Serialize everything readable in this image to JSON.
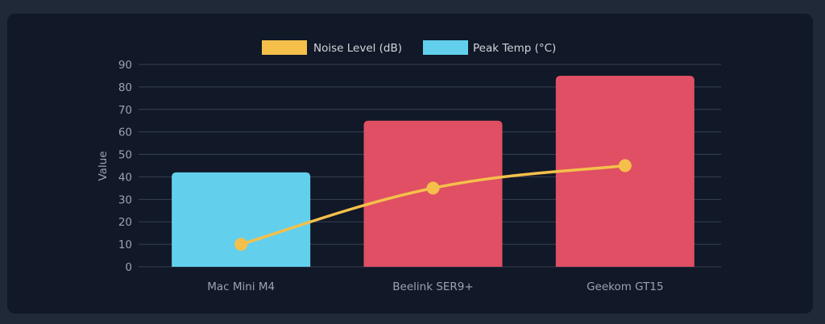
{
  "chart_data": {
    "type": "bar",
    "title": "",
    "xlabel": "",
    "ylabel": "Value",
    "ylim": [
      0,
      90
    ],
    "yticks": [
      0,
      10,
      20,
      30,
      40,
      50,
      60,
      70,
      80,
      90
    ],
    "grid": true,
    "legend_position": "top",
    "categories": [
      "Mac Mini M4",
      "Beelink SER9+",
      "Geekom GT15"
    ],
    "series": [
      {
        "name": "Noise Level (dB)",
        "type": "line",
        "color": "#f4c04b",
        "values": [
          10,
          35,
          45
        ]
      },
      {
        "name": "Peak Temp (°C)",
        "type": "bar",
        "color": "#62d0ed",
        "bar_colors": [
          "#62d0ed",
          "#e04f63",
          "#e04f63"
        ],
        "values": [
          42,
          65,
          85
        ]
      }
    ]
  },
  "legend": [
    {
      "label": "Noise Level (dB)",
      "color": "#f4c04b"
    },
    {
      "label": "Peak Temp (°C)",
      "color": "#62d0ed"
    }
  ],
  "axis": {
    "y_title": "Value"
  },
  "colors": {
    "page_bg": "#1f2937",
    "panel_bg": "#111827",
    "grid": "#374151",
    "text": "#9ca3af"
  }
}
